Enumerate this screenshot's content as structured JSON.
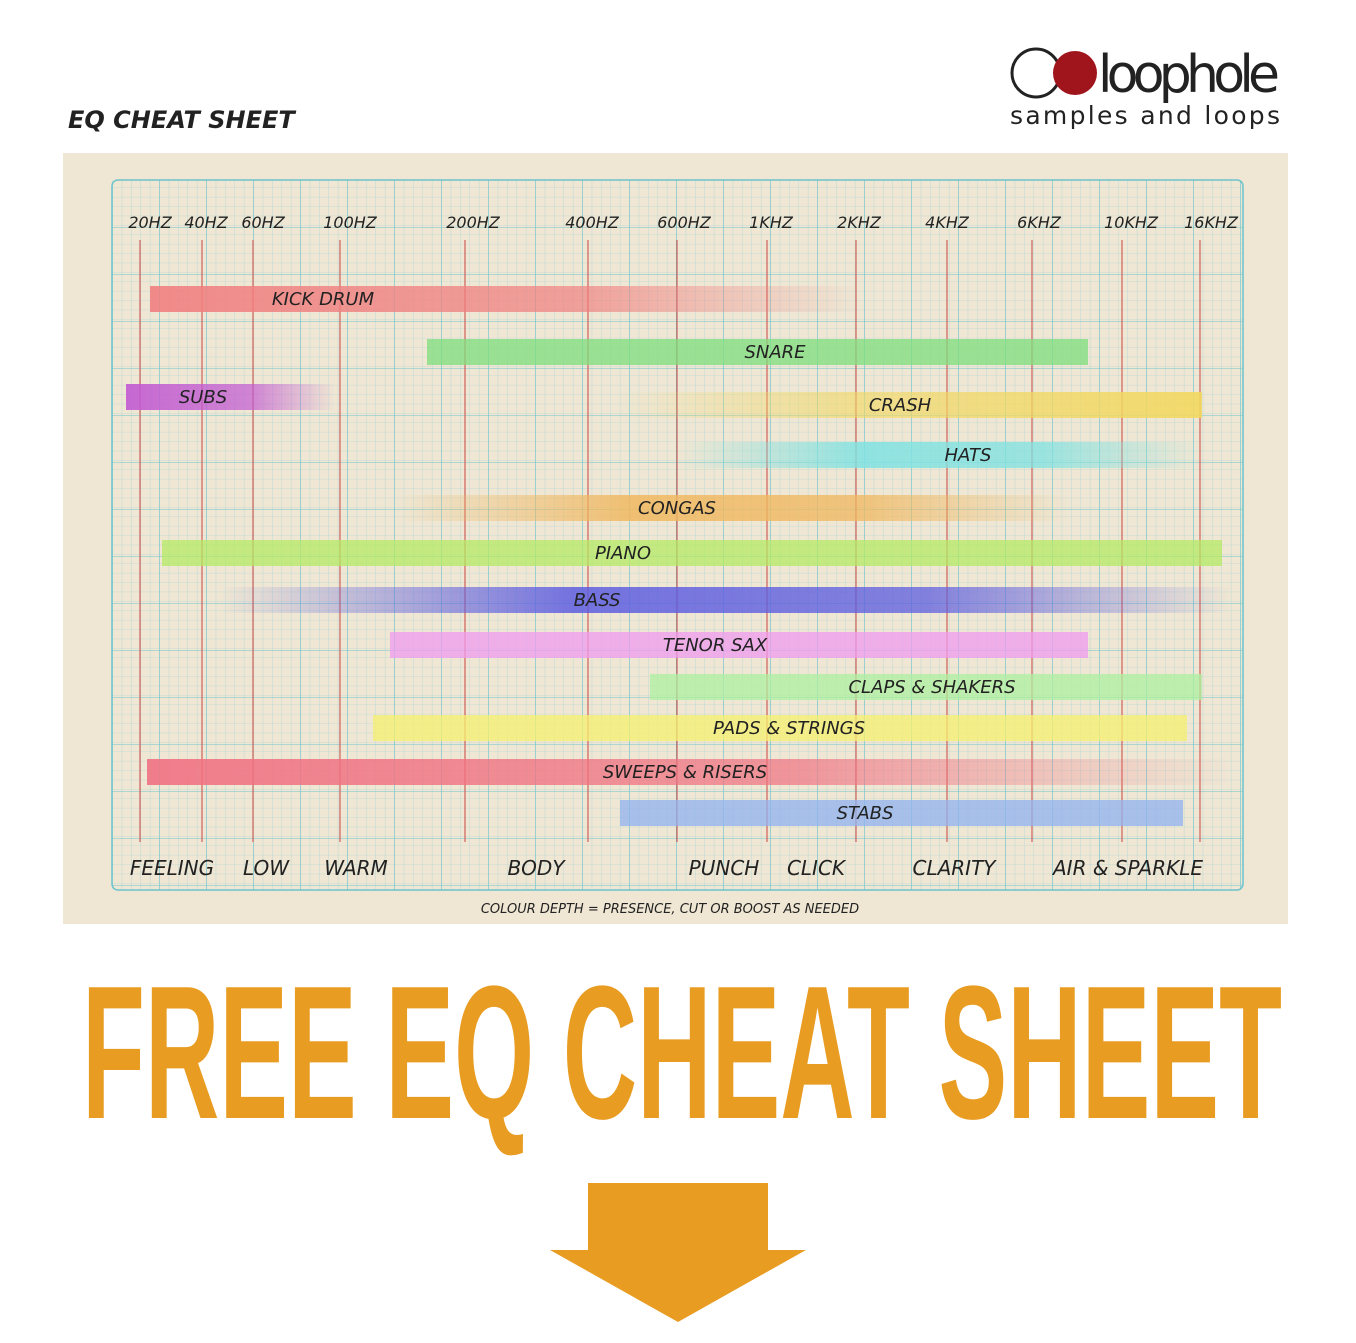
{
  "header": {
    "title": "EQ CHEAT SHEET"
  },
  "logo": {
    "name": "loophole",
    "tagline": "samples and loops"
  },
  "sheet": {
    "frequencies": [
      "20HZ",
      "40HZ",
      "60HZ",
      "100HZ",
      "200HZ",
      "400HZ",
      "600HZ",
      "1KHZ",
      "2KHZ",
      "4KHZ",
      "6KHZ",
      "10KHZ",
      "16KHZ"
    ],
    "instruments": [
      "KICK DRUM",
      "SNARE",
      "SUBS",
      "CRASH",
      "HATS",
      "CONGAS",
      "PIANO",
      "BASS",
      "TENOR SAX",
      "CLAPS & SHAKERS",
      "PADS & STRINGS",
      "SWEEPS & RISERS",
      "STABS"
    ],
    "regions": [
      "FEELING",
      "LOW",
      "WARM",
      "BODY",
      "PUNCH",
      "CLICK",
      "CLARITY",
      "AIR & SPARKLE"
    ],
    "note": "COLOUR DEPTH = PRESENCE, CUT OR BOOST AS NEEDED"
  },
  "banner": {
    "title": "FREE EQ CHEAT SHEET"
  }
}
